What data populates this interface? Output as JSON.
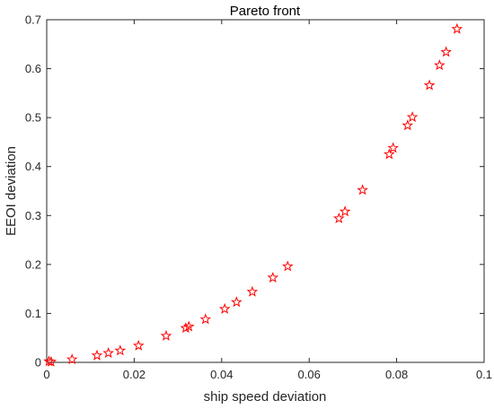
{
  "chart_data": {
    "type": "scatter",
    "title": "Pareto front",
    "xlabel": "ship speed deviation",
    "ylabel": "EEOI deviation",
    "xlim": [
      0,
      0.1
    ],
    "ylim": [
      0,
      0.7
    ],
    "xticks": [
      "0",
      "0.02",
      "0.04",
      "0.06",
      "0.08",
      "0.1"
    ],
    "yticks": [
      "0",
      "0.1",
      "0.2",
      "0.3",
      "0.4",
      "0.5",
      "0.6",
      "0.7"
    ],
    "grid": false,
    "marker": "star",
    "marker_color": "#ff0000",
    "points": [
      {
        "x": 0.0005,
        "y": 0.002
      },
      {
        "x": 0.001,
        "y": 0.001
      },
      {
        "x": 0.0058,
        "y": 0.006
      },
      {
        "x": 0.0115,
        "y": 0.014
      },
      {
        "x": 0.0141,
        "y": 0.019
      },
      {
        "x": 0.0168,
        "y": 0.024
      },
      {
        "x": 0.021,
        "y": 0.034
      },
      {
        "x": 0.0273,
        "y": 0.054
      },
      {
        "x": 0.0318,
        "y": 0.07
      },
      {
        "x": 0.0325,
        "y": 0.073
      },
      {
        "x": 0.0363,
        "y": 0.088
      },
      {
        "x": 0.0407,
        "y": 0.109
      },
      {
        "x": 0.0434,
        "y": 0.123
      },
      {
        "x": 0.047,
        "y": 0.144
      },
      {
        "x": 0.0517,
        "y": 0.173
      },
      {
        "x": 0.0551,
        "y": 0.196
      },
      {
        "x": 0.0668,
        "y": 0.294
      },
      {
        "x": 0.0682,
        "y": 0.308
      },
      {
        "x": 0.0722,
        "y": 0.352
      },
      {
        "x": 0.0783,
        "y": 0.425
      },
      {
        "x": 0.0792,
        "y": 0.438
      },
      {
        "x": 0.0825,
        "y": 0.484
      },
      {
        "x": 0.0836,
        "y": 0.501
      },
      {
        "x": 0.0875,
        "y": 0.566
      },
      {
        "x": 0.0898,
        "y": 0.607
      },
      {
        "x": 0.0913,
        "y": 0.634
      },
      {
        "x": 0.0938,
        "y": 0.681
      }
    ]
  }
}
